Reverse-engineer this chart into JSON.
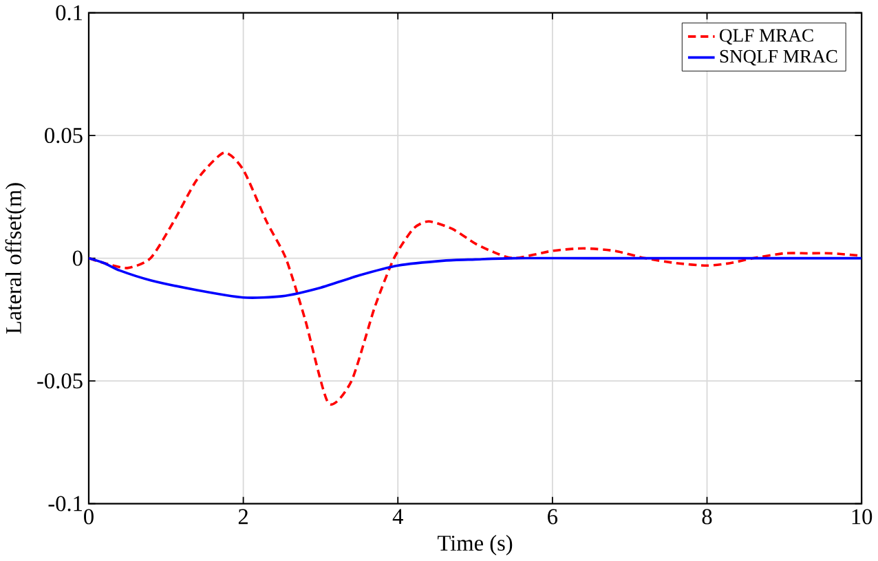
{
  "chart_data": {
    "type": "line",
    "xlabel": "Time (s)",
    "ylabel": "Lateral offset(m)",
    "xlim": [
      0,
      10
    ],
    "ylim": [
      -0.1,
      0.1
    ],
    "xticks": [
      0,
      2,
      4,
      6,
      8,
      10
    ],
    "yticks": [
      -0.1,
      -0.05,
      0,
      0.05,
      0.1
    ],
    "grid": true,
    "legend": "top right",
    "series": [
      {
        "name": "QLF MRAC",
        "color": "#ff0000",
        "line_style": "dashed",
        "x": [
          0,
          0.2,
          0.5,
          0.8,
          1.1,
          1.4,
          1.75,
          2.0,
          2.3,
          2.55,
          2.8,
          3.1,
          3.4,
          3.7,
          3.95,
          4.2,
          4.4,
          4.7,
          5.0,
          5.2,
          5.5,
          6.0,
          6.4,
          6.8,
          7.2,
          7.6,
          8.0,
          8.3,
          8.6,
          9.0,
          9.3,
          9.6,
          10
        ],
        "values": [
          0,
          -0.002,
          -0.004,
          0,
          0.015,
          0.032,
          0.043,
          0.036,
          0.015,
          0,
          -0.025,
          -0.059,
          -0.05,
          -0.02,
          0,
          0.012,
          0.015,
          0.012,
          0.006,
          0.003,
          0,
          0.003,
          0.004,
          0.003,
          0,
          -0.002,
          -0.003,
          -0.002,
          0,
          0.002,
          0.002,
          0.002,
          0.001
        ]
      },
      {
        "name": "SNQLF MRAC",
        "color": "#0000ff",
        "line_style": "solid",
        "x": [
          0,
          0.2,
          0.4,
          0.8,
          1.4,
          2.0,
          2.5,
          3.0,
          3.5,
          4.0,
          4.6,
          5.0,
          5.5,
          6.5,
          8,
          10
        ],
        "values": [
          0,
          -0.002,
          -0.005,
          -0.009,
          -0.013,
          -0.016,
          -0.0155,
          -0.012,
          -0.007,
          -0.003,
          -0.001,
          -0.0005,
          0,
          0,
          0,
          0
        ]
      }
    ]
  }
}
